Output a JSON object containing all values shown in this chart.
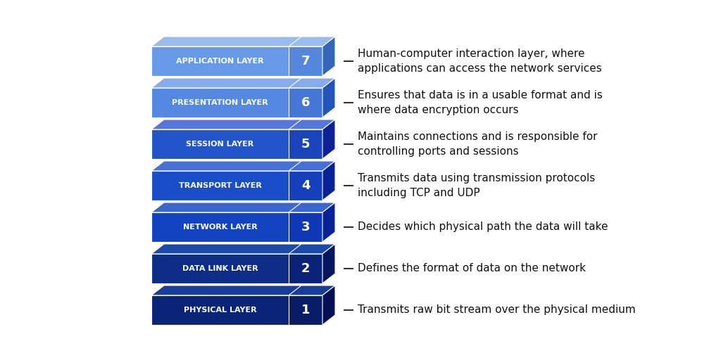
{
  "layers": [
    {
      "number": 7,
      "name": "APPLICATION LAYER",
      "description": "Human-computer interaction layer, where\napplications can access the network services",
      "face_color": "#6699E8",
      "top_color": "#99BBEE",
      "side_color": "#4477CC",
      "num_face_color": "#5588DD",
      "num_side_color": "#3366BB"
    },
    {
      "number": 6,
      "name": "PRESENTATION LAYER",
      "description": "Ensures that data is in a usable format and is\nwhere data encryption occurs",
      "face_color": "#5588E2",
      "top_color": "#88AAEE",
      "side_color": "#3366CC",
      "num_face_color": "#4477D5",
      "num_side_color": "#2255BB"
    },
    {
      "number": 5,
      "name": "SESSION LAYER",
      "description": "Maintains connections and is responsible for\ncontrolling ports and sessions",
      "face_color": "#2255CC",
      "top_color": "#5577DD",
      "side_color": "#1133AA",
      "num_face_color": "#1A44BB",
      "num_side_color": "#0D2299"
    },
    {
      "number": 4,
      "name": "TRANSPORT LAYER",
      "description": "Transmits data using transmission protocols\nincluding TCP and UDP",
      "face_color": "#1A4EC8",
      "top_color": "#4470D8",
      "side_color": "#0D2EA8",
      "num_face_color": "#1440BB",
      "num_side_color": "#0A2299"
    },
    {
      "number": 3,
      "name": "NETWORK LAYER",
      "description": "Decides which physical path the data will take",
      "face_color": "#1244C2",
      "top_color": "#3A66D2",
      "side_color": "#0A2AA0",
      "num_face_color": "#0E38B5",
      "num_side_color": "#082295"
    },
    {
      "number": 2,
      "name": "DATA LINK LAYER",
      "description": "Defines the format of data on the network",
      "face_color": "#0D2D88",
      "top_color": "#1A4AAA",
      "side_color": "#071A66",
      "num_face_color": "#0A2278",
      "num_side_color": "#051560"
    },
    {
      "number": 1,
      "name": "PHYSICAL LAYER",
      "description": "Transmits raw bit stream over the physical medium",
      "face_color": "#0A2577",
      "top_color": "#163D99",
      "side_color": "#061660",
      "num_face_color": "#081D68",
      "num_side_color": "#041055"
    }
  ],
  "bg_color": "#FFFFFF",
  "text_color": "#111111",
  "label_color": "#FFFFFF",
  "desc_fontsize": 11.0,
  "label_fontsize": 8.0,
  "num_fontsize": 13.0
}
